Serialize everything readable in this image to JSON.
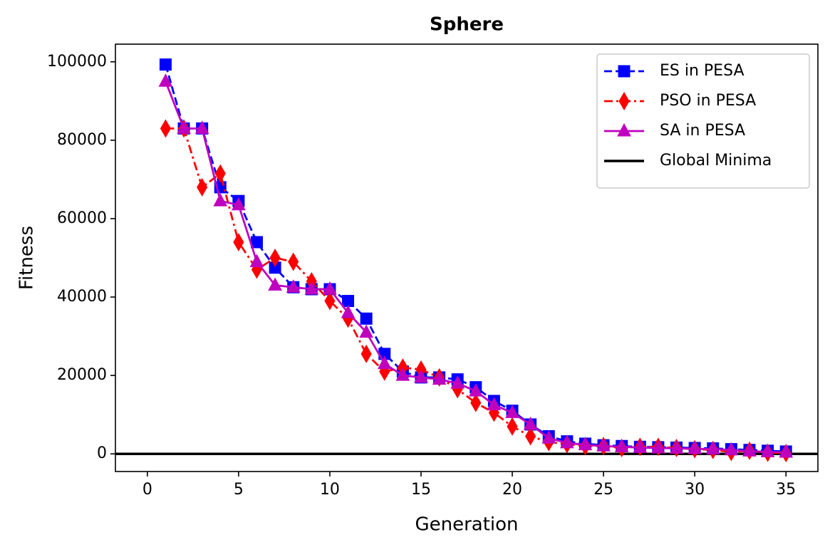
{
  "chart_data": {
    "type": "line",
    "title": "Sphere",
    "x_label": "Generation",
    "y_label": "Fitness",
    "x": [
      1,
      2,
      3,
      4,
      5,
      6,
      7,
      8,
      9,
      10,
      11,
      12,
      13,
      14,
      15,
      16,
      17,
      18,
      19,
      20,
      21,
      22,
      23,
      24,
      25,
      26,
      27,
      28,
      29,
      30,
      31,
      32,
      33,
      34,
      35
    ],
    "series": [
      {
        "name": "ES in PESA",
        "color": "#0000ff",
        "line_style": "dashed",
        "marker": "square",
        "values": [
          99300,
          83000,
          83000,
          68000,
          64500,
          54000,
          47500,
          42500,
          42000,
          42000,
          39000,
          34500,
          25500,
          21000,
          19500,
          19500,
          19000,
          17000,
          13500,
          11000,
          7500,
          4500,
          3200,
          2600,
          2200,
          2000,
          1800,
          1700,
          1600,
          1500,
          1400,
          1200,
          1000,
          800,
          600
        ]
      },
      {
        "name": "PSO in PESA",
        "color": "#ff0000",
        "line_style": "dashdot",
        "marker": "diamond",
        "values": [
          83000,
          83000,
          68000,
          71500,
          54000,
          47000,
          50000,
          49000,
          44000,
          39000,
          34500,
          25500,
          21000,
          22000,
          21500,
          19500,
          16500,
          13000,
          10500,
          7000,
          4500,
          3000,
          2500,
          2000,
          2000,
          1500,
          1800,
          1800,
          1500,
          1200,
          1000,
          500,
          800,
          300,
          200
        ]
      },
      {
        "name": "SA in PESA",
        "color": "#bf00bf",
        "line_style": "solid",
        "marker": "triangle",
        "values": [
          95000,
          83000,
          83000,
          64500,
          63500,
          49000,
          43000,
          42500,
          42000,
          42000,
          36000,
          31000,
          23000,
          20000,
          19500,
          19000,
          18000,
          16000,
          12500,
          10500,
          7500,
          4000,
          2800,
          2300,
          2000,
          1800,
          1600,
          1500,
          1400,
          1300,
          1200,
          1000,
          700,
          500,
          400
        ]
      }
    ],
    "reference_lines": [
      {
        "name": "Global Minima",
        "value": 0,
        "color": "#000000"
      }
    ],
    "xlim": [
      -1.75,
      36.75
    ],
    "xticks": [
      0,
      5,
      10,
      15,
      20,
      25,
      30,
      35
    ],
    "ylim": [
      -4500,
      104500
    ],
    "yticks": [
      0,
      20000,
      40000,
      60000,
      80000,
      100000
    ],
    "grid": false,
    "legend": "upper right"
  }
}
